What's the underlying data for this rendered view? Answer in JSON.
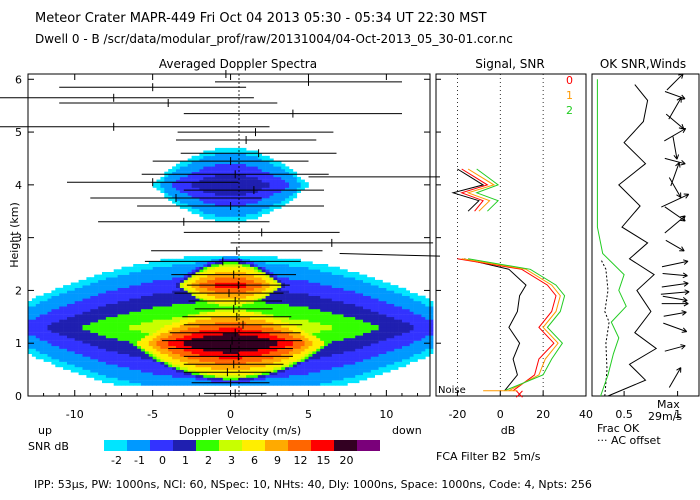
{
  "header": {
    "line1": "Meteor Crater   MAPR-449   Fri Oct 04 2013 05:30 - 05:34 UT 22:30 MST",
    "line2": "Dwell   0 -   B     /scr/data/modular_prof/raw/20131004/04-Oct-2013_05_30-01.cor.nc"
  },
  "footer": {
    "text": "IPP: 53µs,  PW: 1000ns,  NCI: 60,  NSpec: 10, NHts: 40,  Dly: 1000ns,  Space: 1000ns,  Code: 4,  Npts: 256"
  },
  "colors": {
    "snr_scale": [
      "#00e5ff",
      "#0099ff",
      "#3333ff",
      "#1f1fb0",
      "#33ff00",
      "#c8ff00",
      "#ffee00",
      "#ffaa00",
      "#ff6600",
      "#ff0000",
      "#330022",
      "#7a007a"
    ],
    "signal": "#000000",
    "snr0": "#ff0000",
    "snr1": "#ff9900",
    "snr2": "#22cc22"
  },
  "chart_data": [
    {
      "id": "spectra",
      "type": "heatmap",
      "title": "Averaged Doppler Spectra",
      "xlabel": "Doppler Velocity (m/s)",
      "xlabel_left": "up",
      "xlabel_right": "down",
      "ylabel": "Height (km)",
      "xlim": [
        -13,
        12.8
      ],
      "ylim": [
        0,
        6.1
      ],
      "xticks": [
        "-10",
        "-5",
        "0",
        "5",
        "10"
      ],
      "xtick_values": [
        -10,
        -5,
        0,
        5,
        10
      ],
      "yticks": [
        "0",
        "1",
        "2",
        "3",
        "4",
        "5",
        "6"
      ],
      "ytick_values": [
        0,
        1,
        2,
        3,
        4,
        5,
        6
      ],
      "colorbar": {
        "label": "SNR dB",
        "ticks": [
          "-2",
          "-1",
          "0",
          "1",
          "2",
          "3",
          "6",
          "9",
          "12",
          "15",
          "20"
        ]
      },
      "profiles": [
        {
          "h": 0.05,
          "w": 2,
          "mean": 0.3
        },
        {
          "h": 0.25,
          "w": 2.5,
          "mean": 0.0
        },
        {
          "h": 0.45,
          "w": 2.8,
          "mean": -0.2
        },
        {
          "h": 0.6,
          "w": 3.2,
          "mean": 0.2
        },
        {
          "h": 0.75,
          "w": 3.5,
          "mean": 0.5
        },
        {
          "h": 0.9,
          "w": 4,
          "mean": 0.0
        },
        {
          "h": 1.05,
          "w": 4.5,
          "mean": 0.1
        },
        {
          "h": 1.2,
          "w": 4.2,
          "mean": 0.3
        },
        {
          "h": 1.35,
          "w": 3.8,
          "mean": 0.8
        },
        {
          "h": 1.5,
          "w": 3.5,
          "mean": 0.4
        },
        {
          "h": 1.65,
          "w": 2.5,
          "mean": 0.2
        },
        {
          "h": 1.8,
          "w": 3,
          "mean": 0.3
        },
        {
          "h": 1.95,
          "w": 3.5,
          "mean": -0.1
        },
        {
          "h": 2.1,
          "w": 3.3,
          "mean": 0.5
        },
        {
          "h": 2.3,
          "w": 4,
          "mean": 0.2
        },
        {
          "h": 2.55,
          "w": 5,
          "mean": -0.5
        },
        {
          "h": 2.75,
          "w": 5.5,
          "mean": 0.4
        },
        {
          "h": 2.9,
          "w": 6.5,
          "mean": 6.5
        },
        {
          "h": 3.1,
          "w": 5,
          "mean": 2.0
        },
        {
          "h": 3.3,
          "w": 5.5,
          "mean": -3.0
        },
        {
          "h": 3.6,
          "w": 6,
          "mean": 0.0
        },
        {
          "h": 3.75,
          "w": 5.5,
          "mean": -3.5
        },
        {
          "h": 3.9,
          "w": 4.5,
          "mean": 1.5
        },
        {
          "h": 4.05,
          "w": 5.5,
          "mean": -5.0
        },
        {
          "h": 4.2,
          "w": 6,
          "mean": 0.3
        },
        {
          "h": 4.45,
          "w": 5,
          "mean": 0.0
        },
        {
          "h": 4.6,
          "w": 5,
          "mean": 1.8
        },
        {
          "h": 4.85,
          "w": 4.5,
          "mean": 1.0
        },
        {
          "h": 5.0,
          "w": 5,
          "mean": 1.6
        },
        {
          "h": 5.1,
          "w": 10,
          "mean": -7.5
        },
        {
          "h": 5.35,
          "w": 7,
          "mean": 4.0
        },
        {
          "h": 5.55,
          "w": 7,
          "mean": -4.0
        },
        {
          "h": 5.65,
          "w": 9,
          "mean": -7.5
        },
        {
          "h": 5.85,
          "w": 6,
          "mean": -5.0
        },
        {
          "h": 5.95,
          "w": 6,
          "mean": 5.0
        },
        {
          "h": 6.1,
          "w": 6,
          "mean": -0.3
        }
      ]
    },
    {
      "id": "snr",
      "type": "line",
      "title": "Signal, SNR",
      "xlabel": "dB",
      "noise_label": "Noise",
      "xlim": [
        -30,
        40
      ],
      "ylim": [
        0,
        6.1
      ],
      "xticks": [
        "-20",
        "0",
        "20",
        "40"
      ],
      "xtick_values": [
        -20,
        0,
        20,
        40
      ],
      "legend": [
        "0",
        "1",
        "2"
      ],
      "series": [
        {
          "name": "signal",
          "y": [
            0.1,
            0.4,
            0.7,
            1.0,
            1.3,
            1.6,
            1.9,
            2.1,
            2.4,
            2.6
          ],
          "x": [
            2,
            8,
            6,
            9,
            4,
            8,
            9,
            12,
            4,
            -17
          ]
        },
        {
          "name": "0",
          "y": [
            0.1,
            0.4,
            0.7,
            1.0,
            1.3,
            1.6,
            1.9,
            2.1,
            2.4,
            2.6
          ],
          "x": [
            6,
            16,
            18,
            25,
            18,
            24,
            26,
            22,
            10,
            -20
          ]
        },
        {
          "name": "1",
          "y": [
            0.1,
            0.4,
            0.7,
            1.0,
            1.3,
            1.6,
            1.9,
            2.1,
            2.4,
            2.6
          ],
          "x": [
            4,
            18,
            21,
            27,
            20,
            26,
            28,
            24,
            12,
            -18
          ]
        },
        {
          "name": "2",
          "y": [
            0.1,
            0.4,
            0.7,
            1.0,
            1.3,
            1.6,
            1.9,
            2.1,
            2.4,
            2.6
          ],
          "x": [
            2,
            20,
            24,
            29,
            22,
            28,
            30,
            26,
            14,
            -15
          ]
        },
        {
          "name": "upper_signal",
          "y": [
            3.5,
            3.7,
            3.85,
            4.0,
            4.15,
            4.3
          ],
          "x": [
            -15,
            -10,
            -22,
            -8,
            -14,
            -20
          ]
        },
        {
          "name": "upper_0",
          "y": [
            3.5,
            3.7,
            3.85,
            4.0,
            4.15,
            4.3
          ],
          "x": [
            -12,
            -8,
            -18,
            -6,
            -12,
            -18
          ]
        },
        {
          "name": "upper_1",
          "y": [
            3.5,
            3.7,
            3.85,
            4.0,
            4.15,
            4.3
          ],
          "x": [
            -10,
            -5,
            -15,
            -3,
            -9,
            -15
          ]
        },
        {
          "name": "upper_2",
          "y": [
            3.5,
            3.7,
            3.85,
            4.0,
            4.15,
            4.3
          ],
          "x": [
            -6,
            -1,
            -11,
            -1,
            -6,
            -11
          ]
        }
      ]
    },
    {
      "id": "winds",
      "type": "line",
      "title": "OK SNR,Winds",
      "xlabel": "Frac OK",
      "xlabel2": "AC offset",
      "xlim": [
        0.2,
        1.2
      ],
      "ylim": [
        0,
        6.1
      ],
      "xticks": [
        "0.5",
        "1"
      ],
      "xtick_values": [
        0.5,
        1.0
      ],
      "max_label": "Max",
      "max_value": "29m/s",
      "series": [
        {
          "name": "frac_ok",
          "y": [
            0.0,
            0.3,
            0.6,
            0.9,
            1.2,
            1.6,
            2.0,
            2.3,
            2.6,
            2.9,
            3.2,
            3.6,
            4.0,
            4.4,
            4.8,
            5.2,
            5.6,
            5.9
          ],
          "x": [
            0.35,
            0.7,
            0.55,
            0.8,
            0.6,
            0.75,
            0.62,
            0.78,
            0.55,
            0.72,
            0.48,
            0.65,
            0.45,
            0.7,
            0.5,
            0.68,
            0.72,
            0.6
          ]
        },
        {
          "name": "ac_offset",
          "y": [
            0.0,
            0.5,
            1.0,
            1.4,
            1.6,
            2.0,
            2.4,
            2.6
          ],
          "x": [
            0.32,
            0.34,
            0.33,
            0.36,
            0.32,
            0.35,
            0.33,
            0.28
          ]
        },
        {
          "name": "ok_snr",
          "y": [
            0.0,
            0.4,
            0.8,
            1.1,
            1.4,
            1.7,
            2.0,
            2.3,
            2.7,
            3.2,
            4.0,
            5.0,
            6.0
          ],
          "x": [
            0.28,
            0.35,
            0.4,
            0.45,
            0.38,
            0.52,
            0.45,
            0.5,
            0.3,
            0.25,
            0.25,
            0.25,
            0.25
          ]
        }
      ],
      "wind_barbs": [
        {
          "h": 0.35,
          "dir": -60,
          "len": 0.5
        },
        {
          "h": 0.9,
          "dir": -15,
          "len": 0.4
        },
        {
          "h": 1.3,
          "dir": 20,
          "len": 0.6
        },
        {
          "h": 1.55,
          "dir": -10,
          "len": 0.5
        },
        {
          "h": 1.75,
          "dir": 0,
          "len": 0.7
        },
        {
          "h": 1.85,
          "dir": 10,
          "len": 0.6
        },
        {
          "h": 1.95,
          "dir": -5,
          "len": 0.8
        },
        {
          "h": 2.1,
          "dir": -8,
          "len": 0.7
        },
        {
          "h": 2.3,
          "dir": 5,
          "len": 0.6
        },
        {
          "h": 2.5,
          "dir": -12,
          "len": 0.7
        },
        {
          "h": 2.85,
          "dir": 30,
          "len": 0.4
        },
        {
          "h": 3.25,
          "dir": -40,
          "len": 0.7
        },
        {
          "h": 3.45,
          "dir": 35,
          "len": 0.6
        },
        {
          "h": 3.7,
          "dir": -25,
          "len": 0.9
        },
        {
          "h": 3.95,
          "dir": 60,
          "len": 0.5
        },
        {
          "h": 4.2,
          "dir": -70,
          "len": 0.6
        },
        {
          "h": 4.45,
          "dir": 15,
          "len": 0.4
        },
        {
          "h": 4.7,
          "dir": 80,
          "len": 0.5
        },
        {
          "h": 4.95,
          "dir": -30,
          "len": 0.6
        },
        {
          "h": 5.2,
          "dir": 40,
          "len": 0.5
        },
        {
          "h": 5.45,
          "dir": -60,
          "len": 0.6
        },
        {
          "h": 5.7,
          "dir": 20,
          "len": 0.4
        },
        {
          "h": 5.95,
          "dir": -45,
          "len": 0.5
        }
      ]
    }
  ]
}
